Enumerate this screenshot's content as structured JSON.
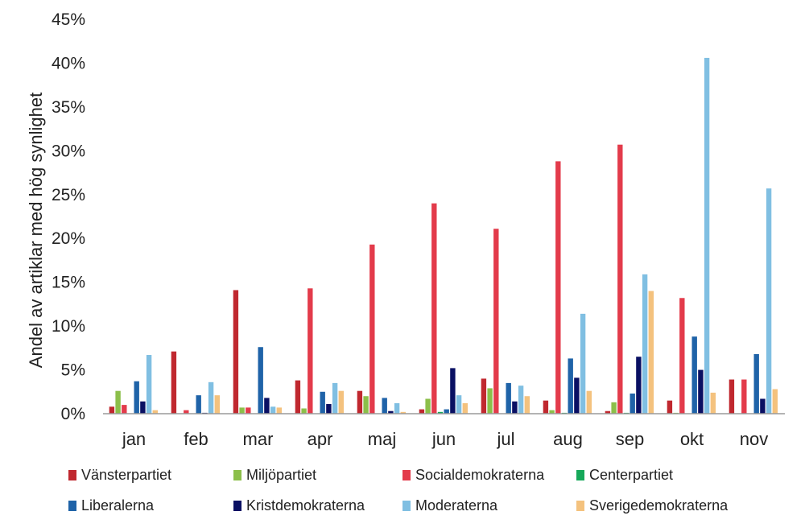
{
  "chart_data": {
    "type": "bar",
    "title": "",
    "xlabel": "",
    "ylabel": "Andel av artiklar med hög synlighet",
    "ylim": [
      0,
      45
    ],
    "y_ticks": [
      "0%",
      "5%",
      "10%",
      "15%",
      "20%",
      "25%",
      "30%",
      "35%",
      "40%",
      "45%"
    ],
    "grid": false,
    "legend_position": "bottom",
    "categories": [
      "jan",
      "feb",
      "mar",
      "apr",
      "maj",
      "jun",
      "jul",
      "aug",
      "sep",
      "okt",
      "nov"
    ],
    "series": [
      {
        "name": "Vänsterpartiet",
        "color": "#c0282f",
        "values": [
          0.8,
          7.1,
          14.1,
          3.8,
          2.6,
          0.5,
          4.0,
          1.5,
          0.3,
          1.5,
          3.9
        ]
      },
      {
        "name": "Miljöpartiet",
        "color": "#8cbf4a",
        "values": [
          2.6,
          0,
          0.7,
          0.6,
          2.0,
          1.7,
          2.9,
          0.4,
          1.3,
          0.1,
          0
        ]
      },
      {
        "name": "Socialdemokraterna",
        "color": "#e33b4b",
        "values": [
          1.0,
          0.4,
          0.7,
          14.3,
          19.3,
          24.0,
          21.1,
          28.8,
          30.7,
          13.2,
          3.9
        ]
      },
      {
        "name": "Centerpartiet",
        "color": "#16a85a",
        "values": [
          0,
          0,
          0,
          0,
          0,
          0.2,
          0,
          0.1,
          0.1,
          0,
          0
        ]
      },
      {
        "name": "Liberalerna",
        "color": "#1f63a8",
        "values": [
          3.7,
          2.1,
          7.6,
          2.5,
          1.8,
          0.5,
          3.5,
          6.3,
          2.3,
          8.8,
          6.8
        ]
      },
      {
        "name": "Kristdemokraterna",
        "color": "#0a1063",
        "values": [
          1.4,
          0.1,
          1.8,
          1.1,
          0.3,
          5.2,
          1.4,
          4.1,
          6.5,
          5.0,
          1.7
        ]
      },
      {
        "name": "Moderaterna",
        "color": "#80bfe2",
        "values": [
          6.7,
          3.6,
          0.8,
          3.5,
          1.2,
          2.1,
          3.2,
          11.4,
          15.9,
          40.6,
          25.7
        ]
      },
      {
        "name": "Sverigedemokraterna",
        "color": "#f4c27e",
        "values": [
          0.4,
          2.1,
          0.7,
          2.6,
          0.2,
          1.2,
          2.0,
          2.6,
          14.0,
          2.4,
          2.8
        ]
      }
    ]
  }
}
